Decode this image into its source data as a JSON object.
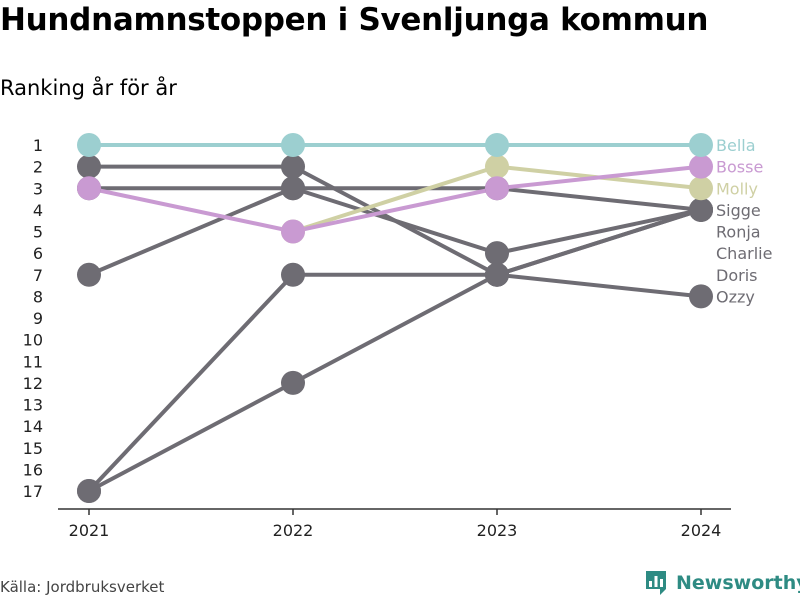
{
  "title": "Hundnamnstoppen i Svenljunga kommun",
  "subtitle": "Ranking år för år",
  "source": "Källa: Jordbruksverket",
  "brand": {
    "name": "Newsworthy",
    "icon": "bar-chart-logo-icon"
  },
  "chart_data": {
    "type": "line",
    "title": "Hundnamnstoppen i Svenljunga kommun",
    "subtitle": "Ranking år för år",
    "x": [
      "2021",
      "2022",
      "2023",
      "2024"
    ],
    "y_ticks": [
      "1",
      "2",
      "3",
      "4",
      "5",
      "6",
      "7",
      "8",
      "9",
      "10",
      "11",
      "12",
      "13",
      "14",
      "15",
      "16",
      "17"
    ],
    "ylim": [
      1,
      17
    ],
    "y_reversed": true,
    "grid": false,
    "legend": "direct labels at right end of lines",
    "series": [
      {
        "name": "Doris",
        "values": [
          17,
          12,
          7,
          4
        ],
        "color": "#6e6c73"
      },
      {
        "name": "Charlie",
        "values": [
          17,
          7,
          7,
          4
        ],
        "color": "#6e6c73"
      },
      {
        "name": "Ronja",
        "values": [
          7,
          3,
          6,
          4
        ],
        "color": "#6e6c73"
      },
      {
        "name": "Sigge",
        "values": [
          3,
          3,
          3,
          4
        ],
        "color": "#6e6c73"
      },
      {
        "name": "Ozzy",
        "values": [
          2,
          2,
          7,
          8
        ],
        "color": "#6e6c73"
      },
      {
        "name": "Molly",
        "values": [
          null,
          5,
          2,
          3
        ],
        "color": "#cfd0a4"
      },
      {
        "name": "Bosse",
        "values": [
          3,
          5,
          3,
          2
        ],
        "color": "#c99ad2"
      },
      {
        "name": "Bella",
        "values": [
          1,
          1,
          1,
          1
        ],
        "color": "#9ccfd0"
      }
    ],
    "end_labels": [
      {
        "name": "Bella",
        "color": "#9ccfd0"
      },
      {
        "name": "Bosse",
        "color": "#c99ad2"
      },
      {
        "name": "Molly",
        "color": "#cfd0a4"
      },
      {
        "name": "Sigge",
        "color": "#6e6c73"
      },
      {
        "name": "Ronja",
        "color": "#6e6c73"
      },
      {
        "name": "Charlie",
        "color": "#6e6c73"
      },
      {
        "name": "Doris",
        "color": "#6e6c73"
      },
      {
        "name": "Ozzy",
        "color": "#6e6c73"
      }
    ]
  }
}
